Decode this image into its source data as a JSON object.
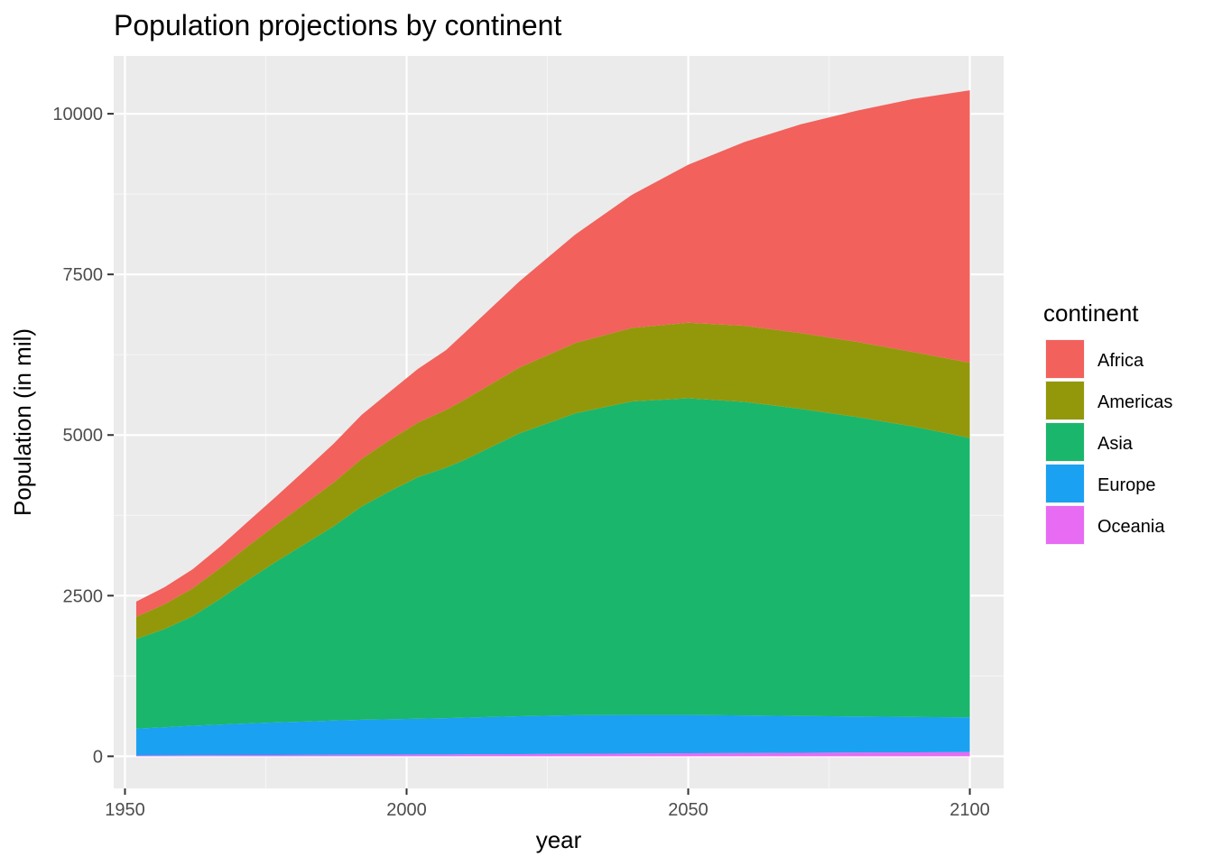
{
  "chart_data": {
    "type": "area",
    "stacked": true,
    "title": "Population projections by continent",
    "xlabel": "year",
    "ylabel": "Population (in mil)",
    "xlim": [
      1948,
      2106
    ],
    "ylim": [
      -500,
      10900
    ],
    "x_ticks": [
      1950,
      1975,
      2000,
      2025,
      2050,
      2075,
      2100
    ],
    "x_tick_labels": [
      "1950",
      "",
      "2000",
      "",
      "2050",
      "",
      "2100"
    ],
    "y_ticks": [
      0,
      2500,
      5000,
      7500,
      10000
    ],
    "y_tick_labels": [
      "0",
      "2500",
      "5000",
      "7500",
      "10000"
    ],
    "grid": true,
    "legend": {
      "title": "continent",
      "position": "right"
    },
    "x": [
      1952,
      1957,
      1962,
      1967,
      1972,
      1977,
      1982,
      1987,
      1992,
      1997,
      2002,
      2007,
      2010,
      2020,
      2030,
      2040,
      2050,
      2060,
      2070,
      2080,
      2090,
      2100
    ],
    "series": [
      {
        "name": "Oceania",
        "color": "#E76BF3",
        "values": [
          13,
          14,
          16,
          18,
          19,
          20,
          22,
          23,
          25,
          26,
          28,
          29,
          31,
          34,
          39,
          43,
          47,
          51,
          55,
          59,
          62,
          65
        ]
      },
      {
        "name": "Europe",
        "color": "#1AA1F2",
        "values": [
          418,
          438,
          459,
          476,
          494,
          508,
          519,
          533,
          543,
          549,
          556,
          564,
          570,
          590,
          600,
          600,
          595,
          585,
          572,
          560,
          550,
          540
        ]
      },
      {
        "name": "Asia",
        "color": "#1AB66C",
        "values": [
          1395,
          1528,
          1705,
          1962,
          2240,
          2510,
          2765,
          3020,
          3320,
          3550,
          3760,
          3900,
          4000,
          4400,
          4700,
          4880,
          4930,
          4880,
          4780,
          4660,
          4520,
          4350
        ]
      },
      {
        "name": "Americas",
        "color": "#93980A",
        "values": [
          345,
          386,
          433,
          480,
          529,
          578,
          630,
          682,
          739,
          797,
          849,
          899,
          935,
          1025,
          1095,
          1145,
          1175,
          1185,
          1180,
          1170,
          1160,
          1170
        ]
      },
      {
        "name": "Africa",
        "color": "#F2615C",
        "values": [
          237,
          264,
          297,
          336,
          385,
          440,
          519,
          604,
          686,
          750,
          835,
          930,
          1030,
          1340,
          1690,
          2070,
          2460,
          2860,
          3250,
          3600,
          3940,
          4240
        ]
      }
    ]
  }
}
